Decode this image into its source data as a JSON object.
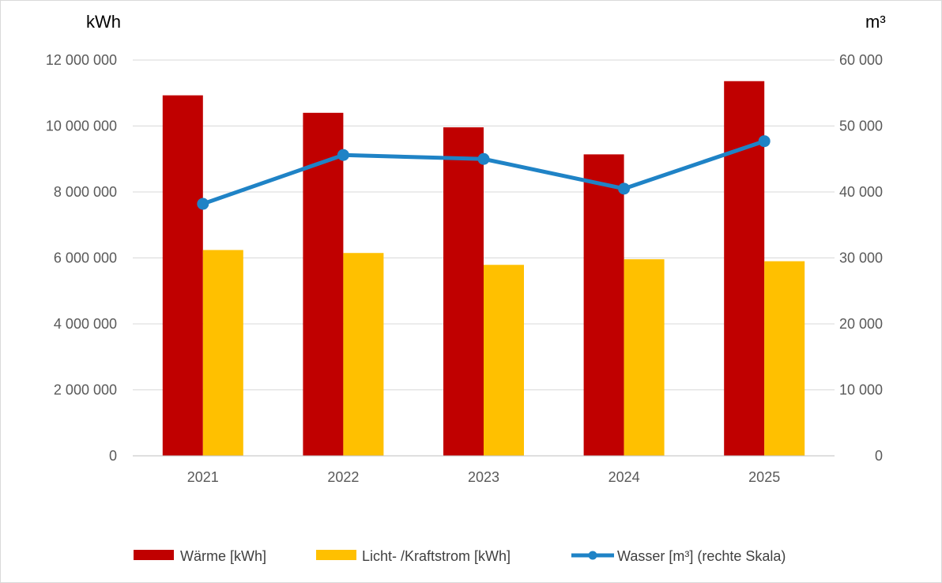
{
  "chart_data": {
    "type": "bar",
    "categories": [
      "2021",
      "2022",
      "2023",
      "2024",
      "2025"
    ],
    "left_unit": "kWh",
    "right_unit": "m³",
    "left_ylim": [
      0,
      12000000
    ],
    "right_ylim": [
      0,
      60000
    ],
    "left_ticks": [
      0,
      2000000,
      4000000,
      6000000,
      8000000,
      10000000,
      12000000
    ],
    "left_tick_labels": [
      "0",
      "2 000 000",
      "4 000 000",
      "6 000 000",
      "8 000 000",
      "10 000 000",
      "12 000 000"
    ],
    "right_ticks": [
      0,
      10000,
      20000,
      30000,
      40000,
      50000,
      60000
    ],
    "right_tick_labels": [
      "0",
      "10 000",
      "20 000",
      "30 000",
      "40 000",
      "50 000",
      "60 000"
    ],
    "grid": true,
    "legend_position": "bottom",
    "series": [
      {
        "name": "Wärme [kWh]",
        "kind": "bar",
        "axis": "left",
        "color": "#c00000",
        "values": [
          10930000,
          10400000,
          9960000,
          9140000,
          11360000
        ]
      },
      {
        "name": "Licht- /Kraftstrom [kWh]",
        "kind": "bar",
        "axis": "left",
        "color": "#ffc000",
        "values": [
          6240000,
          6150000,
          5790000,
          5960000,
          5900000
        ]
      },
      {
        "name": "Wasser [m³] (rechte Skala)",
        "kind": "line",
        "axis": "right",
        "color": "#1f83c6",
        "values": [
          38200,
          45600,
          45000,
          40500,
          47700
        ]
      }
    ]
  }
}
